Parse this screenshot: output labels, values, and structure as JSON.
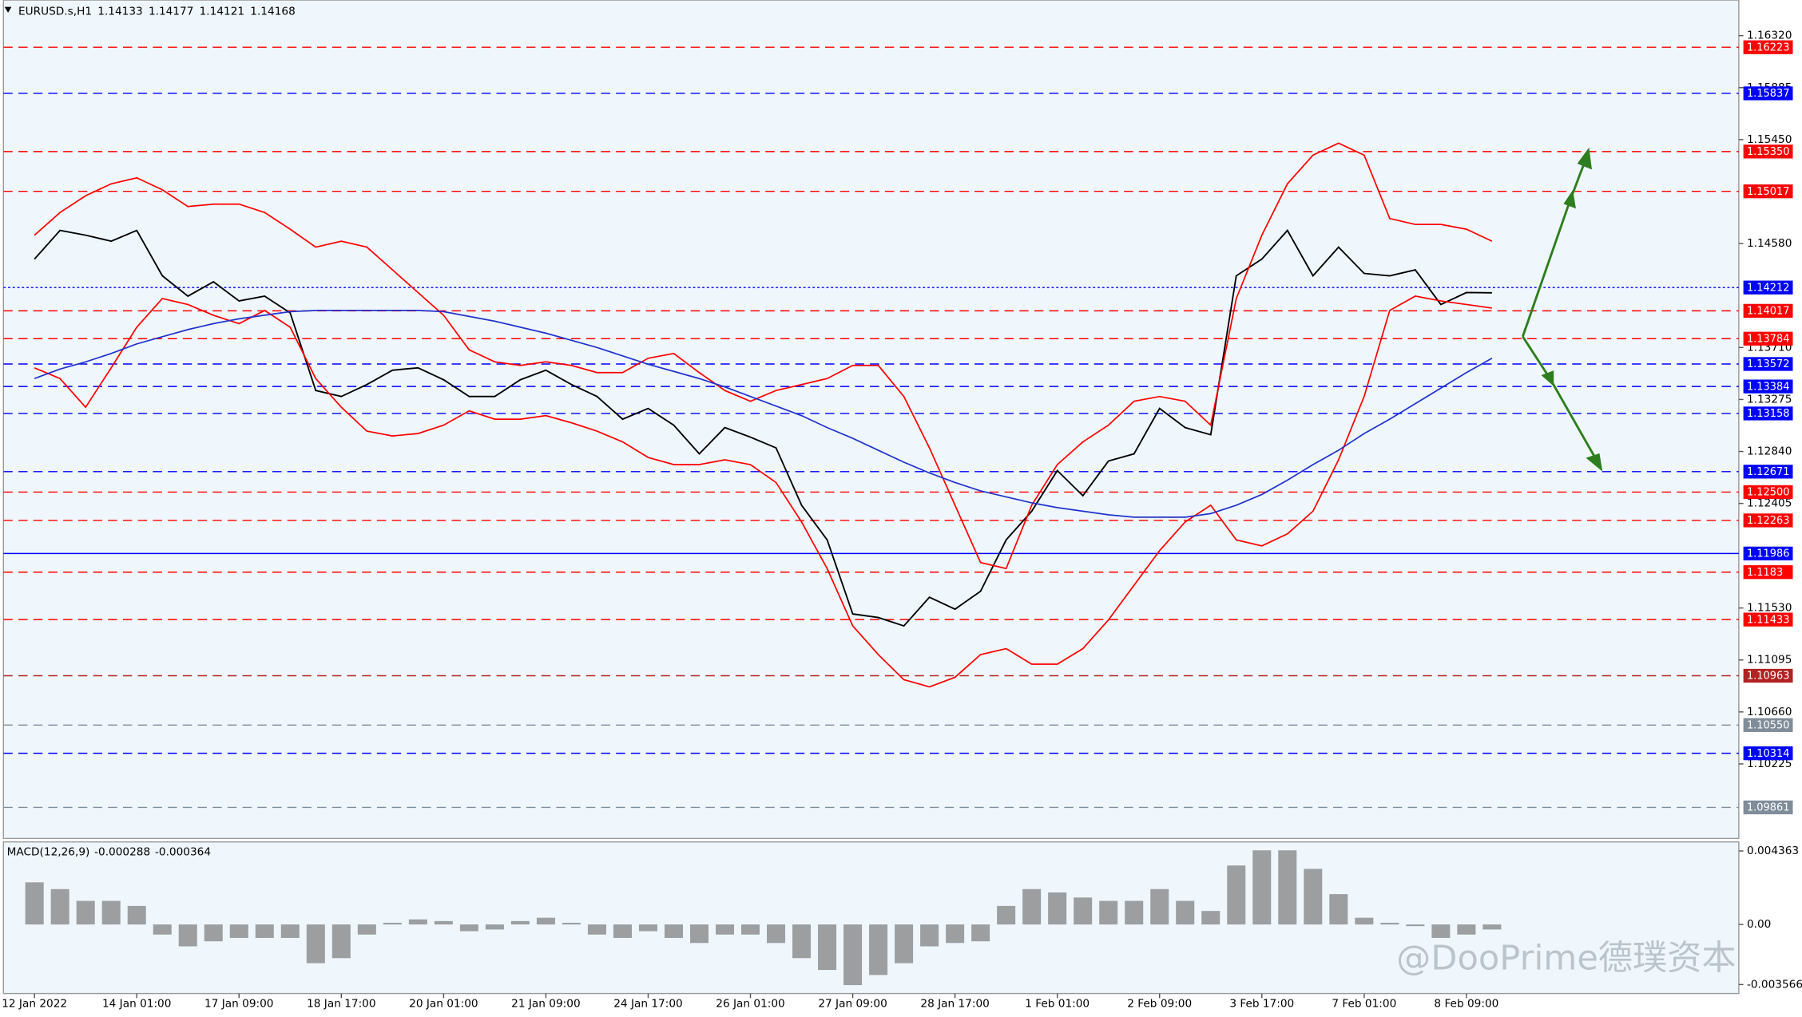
{
  "chart_data": {
    "type": "line",
    "symbol": "EURUSD.s,H1",
    "ohlc": [
      1.14133,
      1.14177,
      1.14121,
      1.14168
    ],
    "watermark": "@DooPrime德璞资本",
    "ylim": [
      1.09601,
      1.16618
    ],
    "yticks": [
      {
        "value": 1.1632,
        "label": "1.16320"
      },
      1.15885,
      {
        "value": 1.1545,
        "label": "1.15450"
      },
      {
        "value": 1.1458,
        "label": "1.14580"
      },
      {
        "value": 1.1371,
        "label": "1.13710"
      },
      1.13275,
      {
        "value": 1.1284,
        "label": "1.12840"
      },
      1.12405,
      {
        "value": 1.1153,
        "label": "1.11530"
      },
      1.11095,
      {
        "value": 1.1066,
        "label": "1.10660"
      },
      1.10225
    ],
    "levels": [
      {
        "price": 1.16223,
        "color": "#ff0000",
        "style": "dash"
      },
      {
        "price": 1.15837,
        "color": "#0000ff",
        "style": "dash"
      },
      {
        "price": {
          "value": 1.1535,
          "label": "1.15350"
        },
        "color": "#ff0000",
        "style": "dash"
      },
      {
        "price": 1.15017,
        "color": "#ff0000",
        "style": "dash"
      },
      {
        "price": 1.14212,
        "color": "#0000ff",
        "style": "dot"
      },
      {
        "price": 1.14017,
        "color": "#ff0000",
        "style": "dash"
      },
      {
        "price": 1.13784,
        "color": "#ff0000",
        "style": "dash"
      },
      {
        "price": 1.13572,
        "color": "#0000ff",
        "style": "dash"
      },
      {
        "price": 1.13384,
        "color": "#0000ff",
        "style": "dash"
      },
      {
        "price": 1.13158,
        "color": "#0000ff",
        "style": "dash"
      },
      {
        "price": 1.12671,
        "color": "#0000ff",
        "style": "dash"
      },
      {
        "price": {
          "value": 1.125,
          "label": "1.12500"
        },
        "color": "#ff0000",
        "style": "dash"
      },
      {
        "price": 1.12263,
        "color": "#ff0000",
        "style": "dash"
      },
      {
        "price": 1.11986,
        "color": "#0000ff",
        "style": "solid"
      },
      {
        "price": 1.1183,
        "color": "#ff0000",
        "style": "dash"
      },
      {
        "price": 1.11433,
        "color": "#ff0000",
        "style": "dash"
      },
      {
        "price": 1.10963,
        "color": "#b22222",
        "style": "dash"
      },
      {
        "price": {
          "value": 1.1055,
          "label": "1.10550"
        },
        "color": "#7f8c9a",
        "style": "dash"
      },
      {
        "price": 1.10314,
        "color": "#0000ff",
        "style": "dash"
      },
      {
        "price": 1.09861,
        "color": "#7f8c9a",
        "style": "dash"
      }
    ],
    "categories": [
      "12 Jan 2022",
      null,
      null,
      null,
      "14 Jan 01:00",
      null,
      null,
      null,
      "17 Jan 09:00",
      null,
      null,
      null,
      "18 Jan 17:00",
      null,
      null,
      null,
      "20 Jan 01:00",
      null,
      null,
      null,
      "21 Jan 09:00",
      null,
      null,
      null,
      "24 Jan 17:00",
      null,
      null,
      null,
      "26 Jan 01:00",
      null,
      null,
      null,
      "27 Jan 09:00",
      null,
      null,
      null,
      "28 Jan 17:00",
      null,
      null,
      null,
      "1 Feb 01:00",
      null,
      null,
      null,
      "2 Feb 09:00",
      null,
      null,
      null,
      "3 Feb 17:00",
      null,
      null,
      null,
      "7 Feb 01:00",
      null,
      null,
      null,
      "8 Feb 09:00",
      null
    ],
    "series": [
      {
        "color": "#000000",
        "values": [
          1.1445,
          1.1469,
          1.1465,
          1.146,
          1.1469,
          1.1431,
          1.1414,
          1.1426,
          1.141,
          1.1414,
          1.14,
          1.1335,
          1.133,
          1.134,
          1.1352,
          1.1354,
          1.1344,
          1.133,
          1.133,
          1.1344,
          1.1352,
          1.134,
          1.133,
          1.1311,
          1.132,
          1.1306,
          1.1282,
          1.1304,
          1.1296,
          1.1287,
          1.1239,
          1.121,
          1.1148,
          1.1145,
          1.1138,
          1.1162,
          1.1152,
          1.1167,
          1.121,
          1.1234,
          1.1268,
          1.1247,
          1.1276,
          1.1282,
          1.132,
          1.1304,
          1.1298,
          1.1431,
          1.1445,
          1.1469,
          1.1431,
          1.1455,
          1.1433,
          1.1431,
          1.1436,
          1.1407,
          1.1417,
          1.14168
        ]
      },
      {
        "color": "#ff0000",
        "values": [
          1.1465,
          1.1484,
          1.1498,
          1.1508,
          1.1513,
          1.1503,
          1.1489,
          1.1491,
          1.1491,
          1.1484,
          1.147,
          1.1455,
          1.146,
          1.1455,
          1.1436,
          1.1417,
          1.1398,
          1.1369,
          1.1359,
          1.1356,
          1.1359,
          1.1356,
          1.135,
          1.135,
          1.1362,
          1.1366,
          1.135,
          1.1335,
          1.1326,
          1.1335,
          1.134,
          1.1345,
          1.1356,
          1.1356,
          1.133,
          1.1287,
          1.1239,
          1.1191,
          1.1186,
          1.1239,
          1.1273,
          1.1292,
          1.1306,
          1.1326,
          1.133,
          1.1326,
          1.1306,
          1.1412,
          1.1465,
          1.1508,
          1.1532,
          1.1542,
          1.1532,
          1.1479,
          1.1474,
          1.1474,
          1.147,
          1.146
        ]
      },
      {
        "color": "#ff0000",
        "values": [
          1.1354,
          1.1345,
          1.1321,
          1.1354,
          1.1388,
          1.1412,
          1.1407,
          1.1398,
          1.1391,
          1.1402,
          1.1388,
          1.1345,
          1.1321,
          1.1301,
          1.1297,
          1.1299,
          1.1306,
          1.1318,
          1.1311,
          1.1311,
          1.1314,
          1.1308,
          1.1301,
          1.1292,
          1.1279,
          1.1273,
          1.1273,
          1.1277,
          1.1273,
          1.1258,
          1.1225,
          1.1186,
          1.1138,
          1.1114,
          1.1093,
          1.1087,
          1.1095,
          1.1114,
          1.1119,
          1.1106,
          1.1106,
          1.1119,
          1.1143,
          1.1172,
          1.1201,
          1.1225,
          1.1239,
          1.121,
          1.1205,
          1.1215,
          1.1234,
          1.1277,
          1.133,
          1.1402,
          1.1414,
          1.141,
          1.1407,
          1.1404
        ]
      },
      {
        "color": "#2233cc",
        "values": [
          1.1345,
          1.1353,
          1.1359,
          1.1366,
          1.1374,
          1.138,
          1.1386,
          1.1391,
          1.1395,
          1.1398,
          1.1401,
          1.1402,
          1.1402,
          1.1402,
          1.1402,
          1.1402,
          1.1401,
          1.1397,
          1.1393,
          1.1388,
          1.1383,
          1.1377,
          1.1371,
          1.1364,
          1.1357,
          1.1351,
          1.1345,
          1.1338,
          1.133,
          1.1322,
          1.1314,
          1.1304,
          1.1295,
          1.1285,
          1.1275,
          1.1266,
          1.1258,
          1.1251,
          1.1246,
          1.1241,
          1.1237,
          1.1234,
          1.1231,
          1.1229,
          1.1229,
          1.1229,
          1.1232,
          1.1239,
          1.1248,
          1.126,
          1.1273,
          1.1285,
          1.1299,
          1.1311,
          1.1324,
          1.1337,
          1.135,
          1.1362
        ]
      }
    ],
    "macd": {
      "type": "bar",
      "label": "MACD(12,26,9)",
      "readout": [
        -0.000288,
        -0.000364
      ],
      "color": "#808080",
      "ylim": [
        -0.0041,
        0.0049
      ],
      "yticks": [
        0.004363,
        {
          "value": 0,
          "label": "0.00"
        },
        -0.003566
      ],
      "values": [
        0.0025,
        0.0021,
        0.0014,
        0.0014,
        0.0011,
        -0.0006,
        -0.0013,
        -0.001,
        -0.0008,
        -0.0008,
        -0.0008,
        -0.0023,
        -0.002,
        -0.0006,
        0.0001,
        0.0003,
        0.0002,
        -0.0004,
        -0.0003,
        0.0002,
        0.0004,
        0.0001,
        -0.0006,
        -0.0008,
        -0.0004,
        -0.0008,
        -0.0011,
        -0.0006,
        -0.0006,
        -0.0011,
        -0.002,
        -0.0027,
        -0.0036,
        -0.003,
        -0.0023,
        -0.0013,
        -0.0011,
        -0.001,
        0.0011,
        0.0021,
        0.0019,
        0.0016,
        0.0014,
        0.0014,
        0.0021,
        0.0014,
        0.0008,
        0.0035,
        0.0044,
        0.0044,
        0.0033,
        0.0018,
        0.0004,
        0.0001,
        -0.0001,
        -0.0008,
        -0.0006,
        -0.0003
      ]
    }
  }
}
